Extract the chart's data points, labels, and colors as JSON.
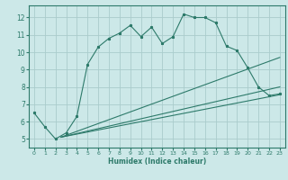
{
  "xlabel": "Humidex (Indice chaleur)",
  "bg_color": "#cce8e8",
  "grid_color": "#aacccc",
  "line_color": "#2d7a6a",
  "spine_color": "#2d7a6a",
  "xlim": [
    -0.5,
    23.5
  ],
  "ylim": [
    4.5,
    12.7
  ],
  "xticks": [
    0,
    1,
    2,
    3,
    4,
    5,
    6,
    7,
    8,
    9,
    10,
    11,
    12,
    13,
    14,
    15,
    16,
    17,
    18,
    19,
    20,
    21,
    22,
    23
  ],
  "yticks": [
    5,
    6,
    7,
    8,
    9,
    10,
    11,
    12
  ],
  "line1_x": [
    0,
    1,
    2,
    3,
    4,
    5,
    6,
    7,
    8,
    9,
    10,
    11,
    12,
    13,
    14,
    15,
    16,
    17,
    18,
    19,
    20,
    21,
    22,
    23
  ],
  "line1_y": [
    6.5,
    5.7,
    5.0,
    5.35,
    6.3,
    9.3,
    10.3,
    10.8,
    11.1,
    11.55,
    10.9,
    11.45,
    10.5,
    10.9,
    12.2,
    12.0,
    12.0,
    11.7,
    10.35,
    10.1,
    9.1,
    8.0,
    7.5,
    7.6
  ],
  "line2_x": [
    2.5,
    23
  ],
  "line2_y": [
    5.1,
    9.7
  ],
  "line3_x": [
    2.5,
    23
  ],
  "line3_y": [
    5.1,
    8.0
  ],
  "line4_x": [
    2.5,
    23
  ],
  "line4_y": [
    5.1,
    7.55
  ],
  "xtick_fontsize": 4.5,
  "ytick_fontsize": 5.5,
  "xlabel_fontsize": 5.5,
  "linewidth": 0.8,
  "marker_size": 2.0
}
